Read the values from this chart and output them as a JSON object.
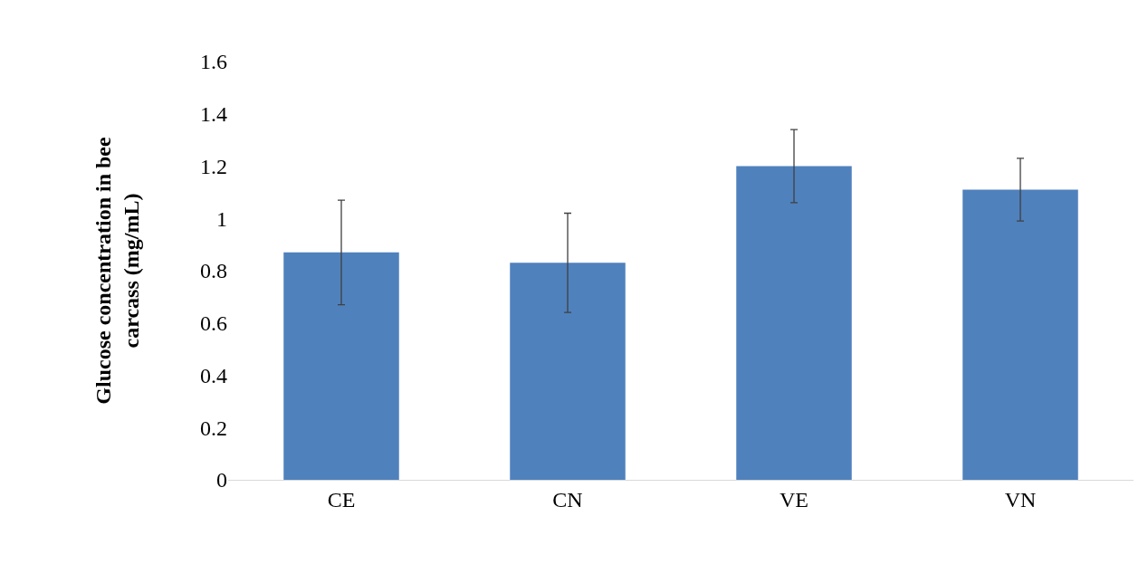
{
  "chart_data": {
    "type": "bar",
    "ylabel": "Glucose concentration in bee\ncarcass (mg/mL)",
    "categories": [
      "CE",
      "CN",
      "VE",
      "VN"
    ],
    "values": [
      0.87,
      0.83,
      1.2,
      1.11
    ],
    "errors": [
      0.2,
      0.19,
      0.14,
      0.12
    ],
    "color": "#4f81bd",
    "ylim": [
      0,
      1.6
    ],
    "yticks": [
      0,
      0.2,
      0.4,
      0.6,
      0.8,
      1,
      1.2,
      1.4,
      1.6
    ],
    "grid": false,
    "legend": false
  }
}
